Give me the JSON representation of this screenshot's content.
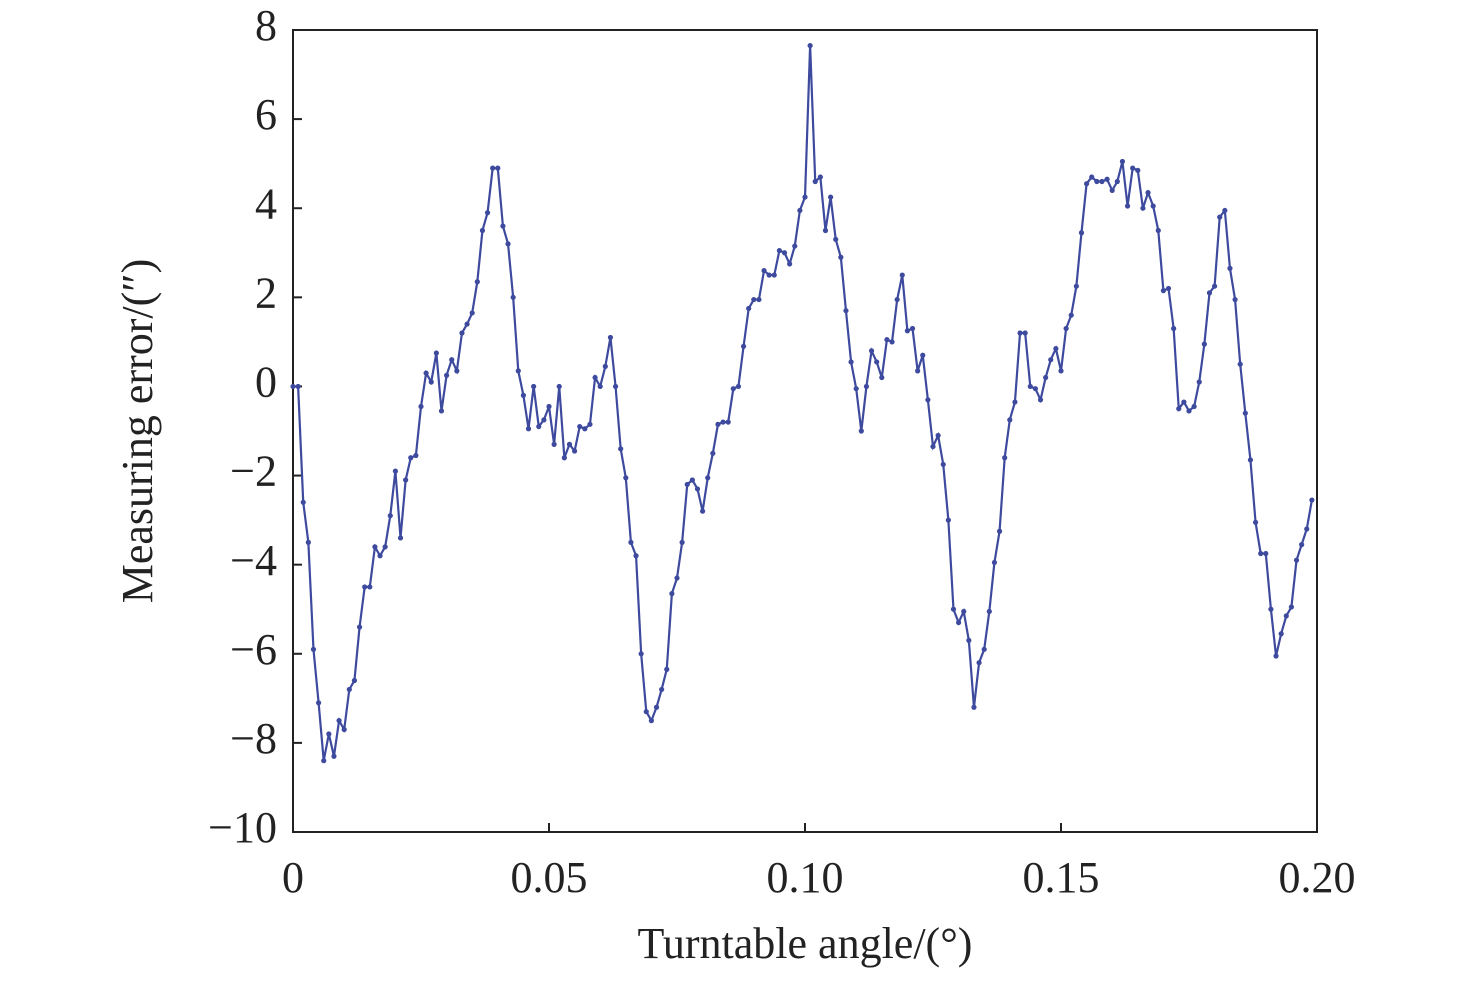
{
  "chart_data": {
    "type": "line",
    "xlabel": "Turntable angle/(°)",
    "ylabel": "Measuring error/(″)",
    "xlim": [
      0,
      0.2
    ],
    "ylim": [
      -10,
      8
    ],
    "xticks": [
      0,
      0.05,
      {
        "value": 0.1,
        "label": "0.10"
      },
      {
        "value": 0.15,
        "label": "0.15"
      },
      {
        "value": 0.2,
        "label": "0.20"
      }
    ],
    "yticks": [
      {
        "value": -10,
        "label": "−10"
      },
      {
        "value": -8,
        "label": "−8"
      },
      {
        "value": -6,
        "label": "−6"
      },
      {
        "value": -4,
        "label": "−4"
      },
      {
        "value": -2,
        "label": "−2"
      },
      0,
      2,
      4,
      6,
      8
    ],
    "x": [
      0,
      0.001,
      0.002,
      0.003,
      0.004,
      0.005,
      0.006,
      0.007,
      0.008,
      0.009,
      0.01,
      0.011,
      0.012,
      0.013,
      0.014,
      0.015,
      0.016,
      0.017,
      0.018,
      0.019,
      0.02,
      0.021,
      0.022,
      0.023,
      0.024,
      0.025,
      0.026,
      0.027,
      0.028,
      0.029,
      0.03,
      0.031,
      0.032,
      0.033,
      0.034,
      0.035,
      0.036,
      0.037,
      0.038,
      0.039,
      0.04,
      0.041,
      0.042,
      0.043,
      0.044,
      0.045,
      0.046,
      0.047,
      0.048,
      0.049,
      0.05,
      0.051,
      0.052,
      0.053,
      0.054,
      0.055,
      0.056,
      0.057,
      0.058,
      0.059,
      0.06,
      0.061,
      0.062,
      0.063,
      0.064,
      0.065,
      0.066,
      0.067,
      0.068,
      0.069,
      0.07,
      0.071,
      0.072,
      0.073,
      0.074,
      0.075,
      0.076,
      0.077,
      0.078,
      0.079,
      0.08,
      0.081,
      0.082,
      0.083,
      0.084,
      0.085,
      0.086,
      0.087,
      0.088,
      0.089,
      0.09,
      0.091,
      0.092,
      0.093,
      0.094,
      0.095,
      0.096,
      0.097,
      0.098,
      0.099,
      0.1,
      0.101,
      0.102,
      0.103,
      0.104,
      0.105,
      0.106,
      0.107,
      0.108,
      0.109,
      0.11,
      0.111,
      0.112,
      0.113,
      0.114,
      0.115,
      0.116,
      0.117,
      0.118,
      0.119,
      0.12,
      0.121,
      0.122,
      0.123,
      0.124,
      0.125,
      0.126,
      0.127,
      0.128,
      0.129,
      0.13,
      0.131,
      0.132,
      0.133,
      0.134,
      0.135,
      0.136,
      0.137,
      0.138,
      0.139,
      0.14,
      0.141,
      0.142,
      0.143,
      0.144,
      0.145,
      0.146,
      0.147,
      0.148,
      0.149,
      0.15,
      0.151,
      0.152,
      0.153,
      0.154,
      0.155,
      0.156,
      0.157,
      0.158,
      0.159,
      0.16,
      0.161,
      0.162,
      0.163,
      0.164,
      0.165,
      0.166,
      0.167,
      0.168,
      0.169,
      0.17,
      0.171,
      0.172,
      0.173,
      0.174,
      0.175,
      0.176,
      0.177,
      0.178,
      0.179,
      0.18,
      0.181,
      0.182,
      0.183,
      0.184,
      0.185,
      0.186,
      0.187,
      0.188,
      0.189,
      0.19,
      0.191,
      0.192,
      0.193,
      0.194,
      0.195,
      0.196,
      0.197,
      0.198,
      0.199
    ],
    "series": [
      {
        "color": "#3d4a9e",
        "values": [
          0,
          0,
          -2.6,
          -3.5,
          -5.9,
          -7.1,
          -8.4,
          -7.8,
          -8.3,
          -7.5,
          -7.7,
          -6.8,
          -6.6,
          -5.4,
          -4.5,
          -4.5,
          -3.6,
          -3.8,
          -3.6,
          -2.9,
          -1.9,
          -3.4,
          -2.1,
          -1.6,
          -1.55,
          -0.45,
          0.3,
          0.1,
          0.75,
          -0.55,
          0.25,
          0.6,
          0.35,
          1.2,
          1.4,
          1.65,
          2.35,
          3.5,
          3.9,
          4.9,
          4.9,
          3.6,
          3.2,
          2.0,
          0.35,
          -0.2,
          -0.95,
          0,
          -0.9,
          -0.75,
          -0.45,
          -1.3,
          0,
          -1.6,
          -1.3,
          -1.45,
          -0.9,
          -0.95,
          -0.85,
          0.2,
          0,
          0.45,
          1.1,
          0,
          -1.4,
          -2.05,
          -3.5,
          -3.8,
          -6.0,
          -7.3,
          -7.5,
          -7.2,
          -6.8,
          -6.35,
          -4.65,
          -4.3,
          -3.5,
          -2.2,
          -2.1,
          -2.3,
          -2.8,
          -2.05,
          -1.5,
          -0.85,
          -0.8,
          -0.8,
          -0.05,
          0,
          0.9,
          1.75,
          1.95,
          1.95,
          2.6,
          2.5,
          2.5,
          3.05,
          3.0,
          2.75,
          3.15,
          3.95,
          4.25,
          7.65,
          4.6,
          4.7,
          3.5,
          4.25,
          3.3,
          2.9,
          1.7,
          0.55,
          -0.05,
          -1.0,
          0,
          0.8,
          0.55,
          0.2,
          1.05,
          1.0,
          1.95,
          2.5,
          1.25,
          1.3,
          0.35,
          0.7,
          -0.3,
          -1.35,
          -1.1,
          -1.75,
          -3.0,
          -5.0,
          -5.3,
          -5.05,
          -5.7,
          -7.2,
          -6.2,
          -5.9,
          -5.05,
          -3.95,
          -3.25,
          -1.6,
          -0.75,
          -0.35,
          1.2,
          1.2,
          0,
          -0.05,
          -0.3,
          0.2,
          0.6,
          0.85,
          0.35,
          1.3,
          1.6,
          2.25,
          3.45,
          4.55,
          4.7,
          4.6,
          4.6,
          4.65,
          4.4,
          4.6,
          5.05,
          4.05,
          4.9,
          4.85,
          4.0,
          4.35,
          4.05,
          3.5,
          2.15,
          2.2,
          1.3,
          -0.5,
          -0.35,
          -0.55,
          -0.45,
          0.1,
          0.95,
          2.1,
          2.25,
          3.8,
          3.95,
          2.65,
          1.95,
          0.5,
          -0.6,
          -1.65,
          -3.05,
          -3.75,
          -3.75,
          -5.0,
          -6.05,
          -5.55,
          -5.15,
          -4.95,
          -3.9,
          -3.55,
          -3.2,
          -2.55
        ]
      }
    ]
  }
}
